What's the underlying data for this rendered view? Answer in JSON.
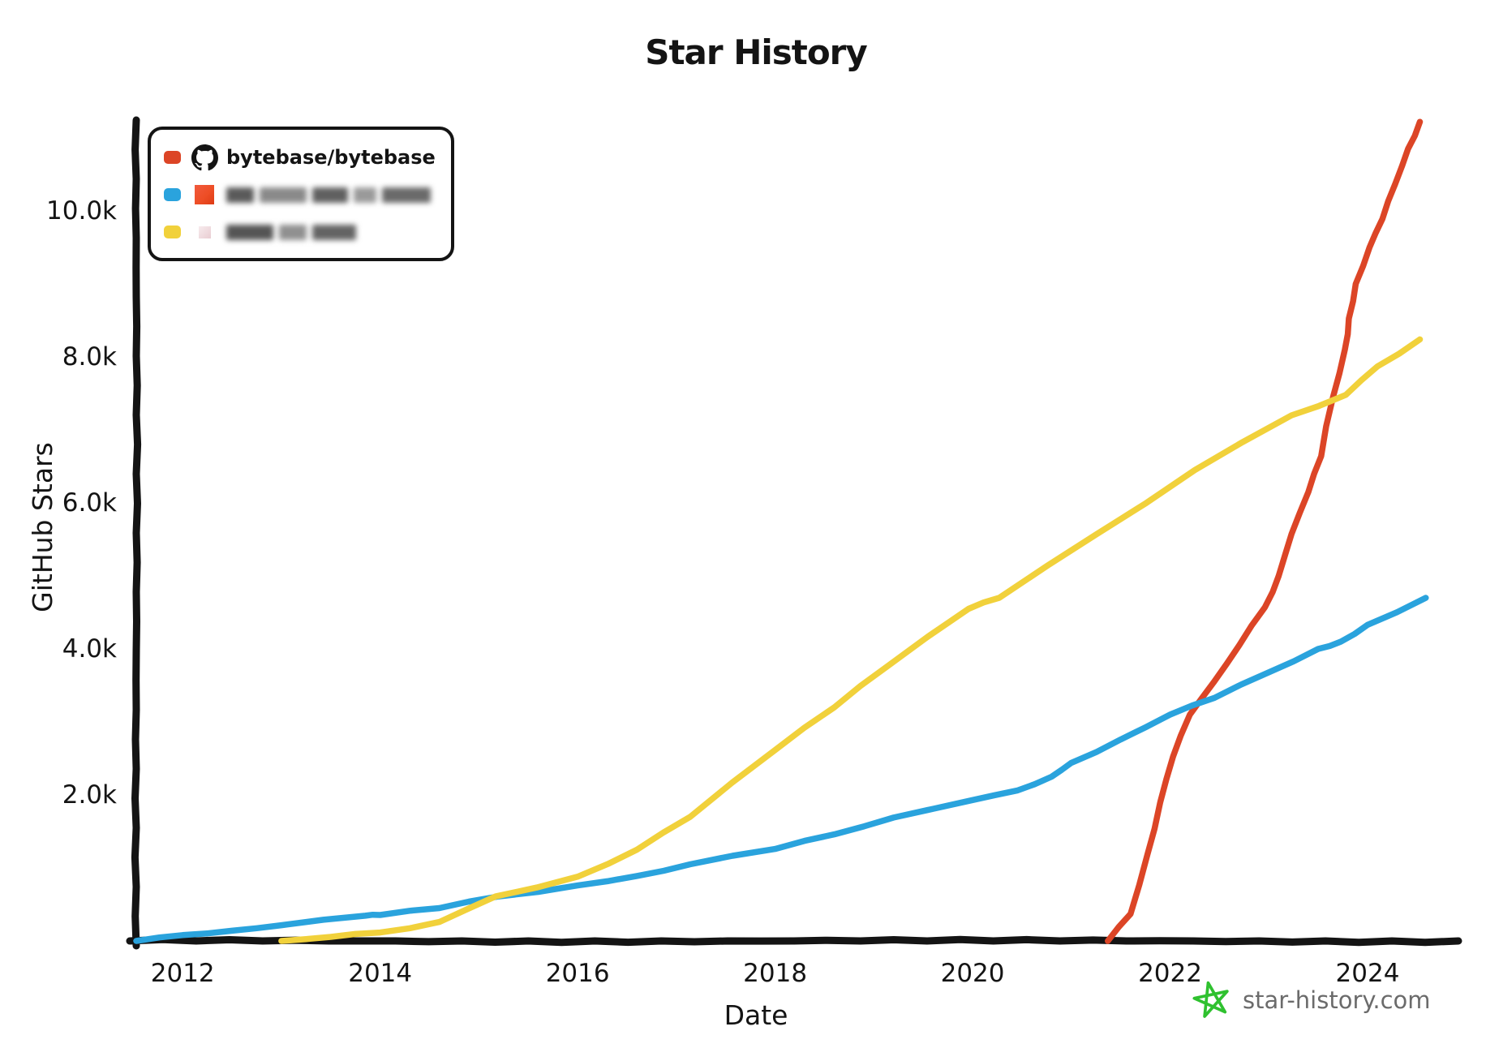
{
  "chart_data": {
    "type": "line",
    "title": "Star History",
    "xlabel": "Date",
    "ylabel": "GitHub Stars",
    "grid": false,
    "legend_position": "top-left",
    "x_range": [
      2011.53,
      2024.92
    ],
    "y_range": [
      0,
      11244
    ],
    "x_ticks": [
      {
        "year": 2012,
        "label": "2012"
      },
      {
        "year": 2014,
        "label": "2014"
      },
      {
        "year": 2016,
        "label": "2016"
      },
      {
        "year": 2018,
        "label": "2018"
      },
      {
        "year": 2020,
        "label": "2020"
      },
      {
        "year": 2022,
        "label": "2022"
      },
      {
        "year": 2024,
        "label": "2024"
      }
    ],
    "y_ticks": [
      {
        "value": 2000,
        "label": "2.0k"
      },
      {
        "value": 4000,
        "label": "4.0k"
      },
      {
        "value": 6000,
        "label": "6.0k"
      },
      {
        "value": 8000,
        "label": "8.0k"
      },
      {
        "value": 10000,
        "label": "10.0k"
      }
    ],
    "series": [
      {
        "id": "red",
        "name": "bytebase/bytebase",
        "color": "#dc4526",
        "points": [
          [
            2021.37,
            0
          ],
          [
            2021.6,
            370
          ],
          [
            2021.77,
            1180
          ],
          [
            2021.9,
            1900
          ],
          [
            2022.03,
            2525
          ],
          [
            2022.2,
            3100
          ],
          [
            2022.44,
            3540
          ],
          [
            2022.7,
            4050
          ],
          [
            2022.96,
            4570
          ],
          [
            2023.1,
            5000
          ],
          [
            2023.23,
            5575
          ],
          [
            2023.4,
            6150
          ],
          [
            2023.53,
            6640
          ],
          [
            2023.65,
            7450
          ],
          [
            2023.77,
            8100
          ],
          [
            2023.81,
            8525
          ],
          [
            2023.88,
            9000
          ],
          [
            2024.02,
            9500
          ],
          [
            2024.15,
            9890
          ],
          [
            2024.28,
            10370
          ],
          [
            2024.41,
            10850
          ],
          [
            2024.53,
            11220
          ]
        ]
      },
      {
        "id": "blue",
        "name": "",
        "redacted": true,
        "color": "#2aa3dd",
        "points": [
          [
            2011.53,
            0
          ],
          [
            2012.0,
            80
          ],
          [
            2012.5,
            140
          ],
          [
            2013.0,
            215
          ],
          [
            2013.85,
            345
          ],
          [
            2014.0,
            355
          ],
          [
            2014.6,
            450
          ],
          [
            2015.2,
            610
          ],
          [
            2016.0,
            760
          ],
          [
            2016.6,
            890
          ],
          [
            2017.14,
            1050
          ],
          [
            2018.0,
            1260
          ],
          [
            2018.6,
            1460
          ],
          [
            2019.2,
            1690
          ],
          [
            2020.0,
            1930
          ],
          [
            2020.45,
            2060
          ],
          [
            2020.8,
            2250
          ],
          [
            2021.0,
            2440
          ],
          [
            2021.5,
            2760
          ],
          [
            2022.0,
            3100
          ],
          [
            2022.45,
            3330
          ],
          [
            2023.0,
            3680
          ],
          [
            2023.5,
            4000
          ],
          [
            2023.73,
            4100
          ],
          [
            2024.0,
            4330
          ],
          [
            2024.59,
            4700
          ]
        ]
      },
      {
        "id": "yellow",
        "name": "",
        "redacted": true,
        "color": "#f1d13b",
        "points": [
          [
            2013.0,
            0
          ],
          [
            2013.5,
            55
          ],
          [
            2014.0,
            115
          ],
          [
            2014.6,
            260
          ],
          [
            2015.17,
            610
          ],
          [
            2016.0,
            880
          ],
          [
            2016.6,
            1250
          ],
          [
            2017.14,
            1700
          ],
          [
            2018.0,
            2615
          ],
          [
            2018.6,
            3200
          ],
          [
            2019.14,
            3765
          ],
          [
            2019.96,
            4550
          ],
          [
            2020.27,
            4700
          ],
          [
            2021.26,
            5575
          ],
          [
            2022.25,
            6450
          ],
          [
            2023.23,
            7200
          ],
          [
            2023.78,
            7480
          ],
          [
            2024.1,
            7870
          ],
          [
            2024.53,
            8240
          ]
        ]
      }
    ]
  },
  "legend": {
    "items": [
      {
        "label": "bytebase/bytebase",
        "swatch": "#dc4526",
        "icon": "github-logo",
        "redacted": false
      },
      {
        "label": "",
        "swatch": "#2aa3dd",
        "icon": "avatar-redacted-orange",
        "redacted": true
      },
      {
        "label": "",
        "swatch": "#f1d13b",
        "icon": "avatar-redacted-pink",
        "redacted": true
      }
    ]
  },
  "footer": {
    "brand": "star-history.com",
    "star_color": "#2fc12f",
    "text_color": "#6b6b6b"
  },
  "colors": {
    "axis": "#141414",
    "background": "#ffffff"
  }
}
